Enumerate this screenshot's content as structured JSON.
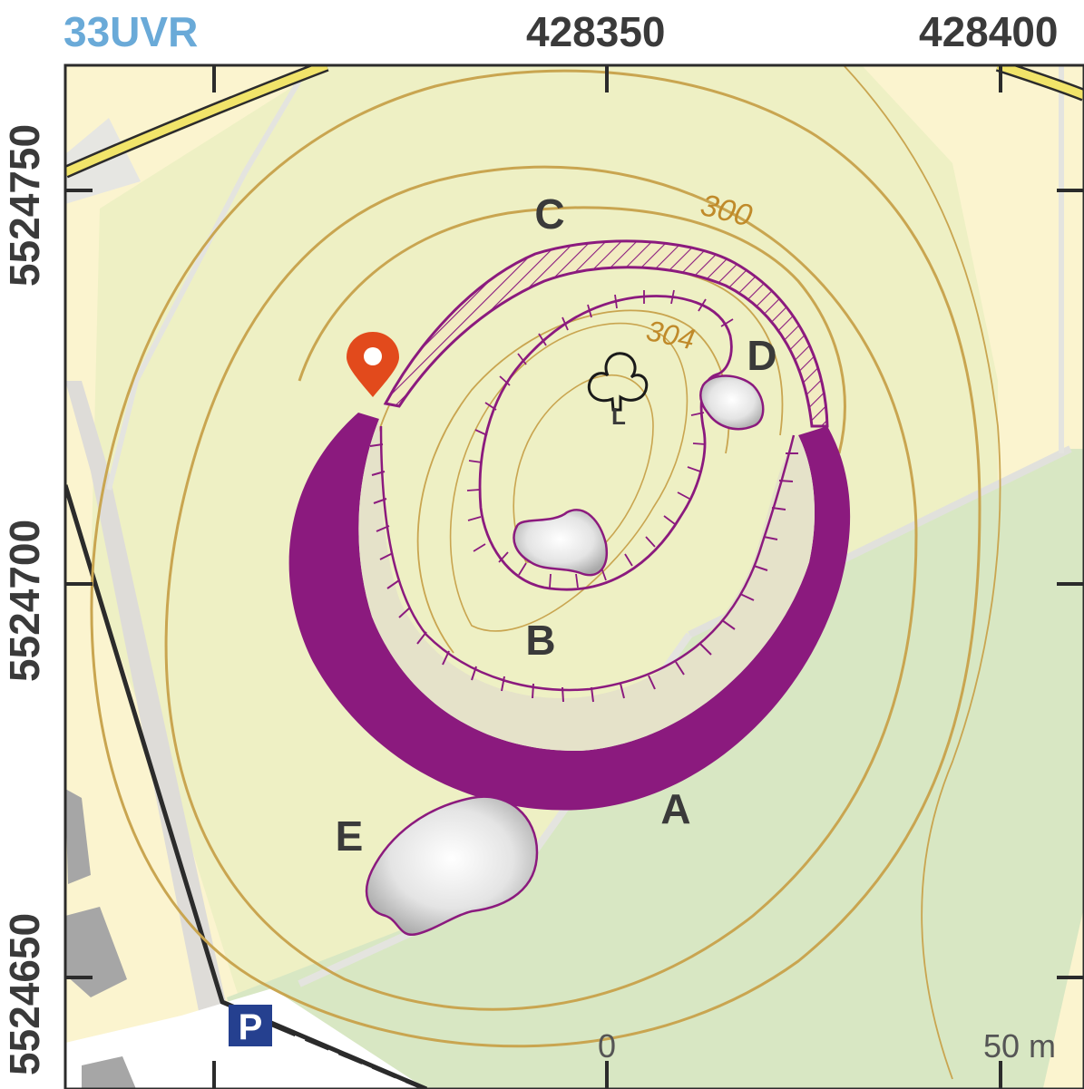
{
  "grid": {
    "zone": "33UVR",
    "eastings": [
      "428350",
      "428400"
    ],
    "northings": [
      "5524750",
      "5524700",
      "5524650"
    ]
  },
  "features": {
    "labels": [
      "A",
      "B",
      "C",
      "D",
      "E"
    ],
    "contours": [
      "300",
      "304"
    ],
    "tree_symbol": "L"
  },
  "scale": {
    "start": "0",
    "end": "50 m"
  },
  "icons": {
    "marker": "location-pin-icon",
    "parking": "P",
    "tree": "tree-icon"
  },
  "colors": {
    "rampart": "#8b1a7e",
    "contour": "#c4a145",
    "pin": "#e24a1c",
    "parking": "#25408f",
    "road": "#f0e35a",
    "forest": "#d6e6c2",
    "meadow": "#eef0c4"
  }
}
